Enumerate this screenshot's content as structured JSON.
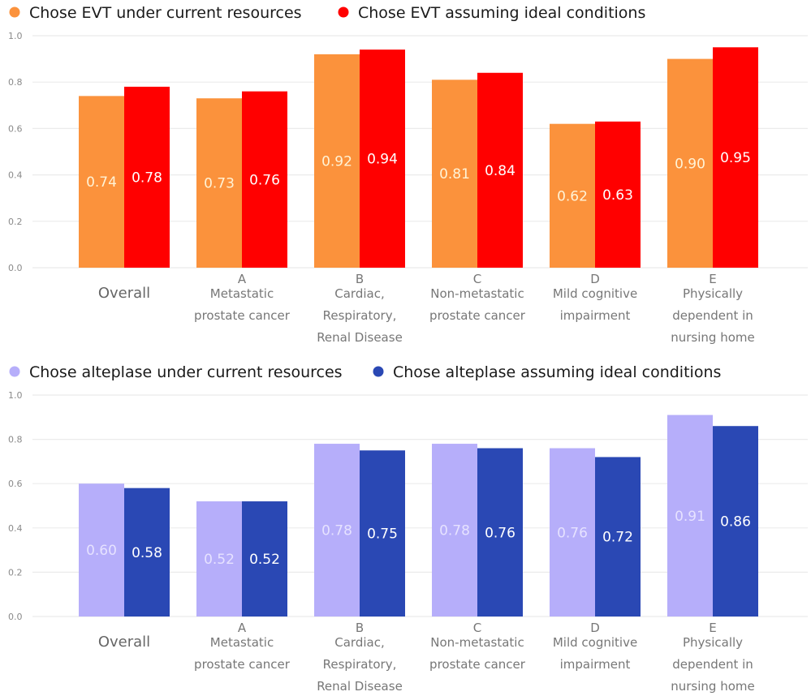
{
  "chart_data": [
    {
      "type": "bar",
      "title": "",
      "xlabel": "",
      "ylabel": "",
      "ylim": [
        0,
        1.0
      ],
      "yticks": [
        "0.0",
        "0.2",
        "0.4",
        "0.6",
        "0.8",
        "1.0"
      ],
      "grid": true,
      "legend_position": "top-left",
      "categories": [
        {
          "letter": "",
          "lines": [
            "Overall"
          ]
        },
        {
          "letter": "A",
          "lines": [
            "Metastatic",
            "prostate cancer"
          ]
        },
        {
          "letter": "B",
          "lines": [
            "Cardiac,",
            "Respiratory,",
            "Renal Disease"
          ]
        },
        {
          "letter": "C",
          "lines": [
            "Non-metastatic",
            "prostate cancer"
          ]
        },
        {
          "letter": "D",
          "lines": [
            "Mild cognitive",
            "impairment"
          ]
        },
        {
          "letter": "E",
          "lines": [
            "Physically",
            "dependent in",
            "nursing home"
          ]
        }
      ],
      "series": [
        {
          "name": "Chose EVT under current resources",
          "color": "#FB923C",
          "label_color": "#FFF3D6",
          "values": [
            0.74,
            0.73,
            0.92,
            0.81,
            0.62,
            0.9
          ],
          "labels": [
            "0.74",
            "0.73",
            "0.92",
            "0.81",
            "0.62",
            "0.90"
          ]
        },
        {
          "name": "Chose EVT assuming ideal conditions",
          "color": "#FF0000",
          "label_color": "#FFFFFF",
          "values": [
            0.78,
            0.76,
            0.94,
            0.84,
            0.63,
            0.95
          ],
          "labels": [
            "0.78",
            "0.76",
            "0.94",
            "0.84",
            "0.63",
            "0.95"
          ]
        }
      ]
    },
    {
      "type": "bar",
      "title": "",
      "xlabel": "",
      "ylabel": "",
      "ylim": [
        0,
        1.0
      ],
      "yticks": [
        "0.0",
        "0.2",
        "0.4",
        "0.6",
        "0.8",
        "1.0"
      ],
      "grid": true,
      "legend_position": "top-left",
      "categories": [
        {
          "letter": "",
          "lines": [
            "Overall"
          ]
        },
        {
          "letter": "A",
          "lines": [
            "Metastatic",
            "prostate cancer"
          ]
        },
        {
          "letter": "B",
          "lines": [
            "Cardiac,",
            "Respiratory,",
            "Renal Disease"
          ]
        },
        {
          "letter": "C",
          "lines": [
            "Non-metastatic",
            "prostate cancer"
          ]
        },
        {
          "letter": "D",
          "lines": [
            "Mild cognitive",
            "impairment"
          ]
        },
        {
          "letter": "E",
          "lines": [
            "Physically",
            "dependent in",
            "nursing home"
          ]
        }
      ],
      "series": [
        {
          "name": "Chose alteplase under current resources",
          "color": "#B6AEFA",
          "label_color": "#E6E2FF",
          "values": [
            0.6,
            0.52,
            0.78,
            0.78,
            0.76,
            0.91
          ],
          "labels": [
            "0.60",
            "0.52",
            "0.78",
            "0.78",
            "0.76",
            "0.91"
          ]
        },
        {
          "name": "Chose alteplase assuming ideal conditions",
          "color": "#2A48B4",
          "label_color": "#FFFFFF",
          "values": [
            0.58,
            0.52,
            0.75,
            0.76,
            0.72,
            0.86
          ],
          "labels": [
            "0.58",
            "0.52",
            "0.75",
            "0.76",
            "0.72",
            "0.86"
          ]
        }
      ]
    }
  ]
}
